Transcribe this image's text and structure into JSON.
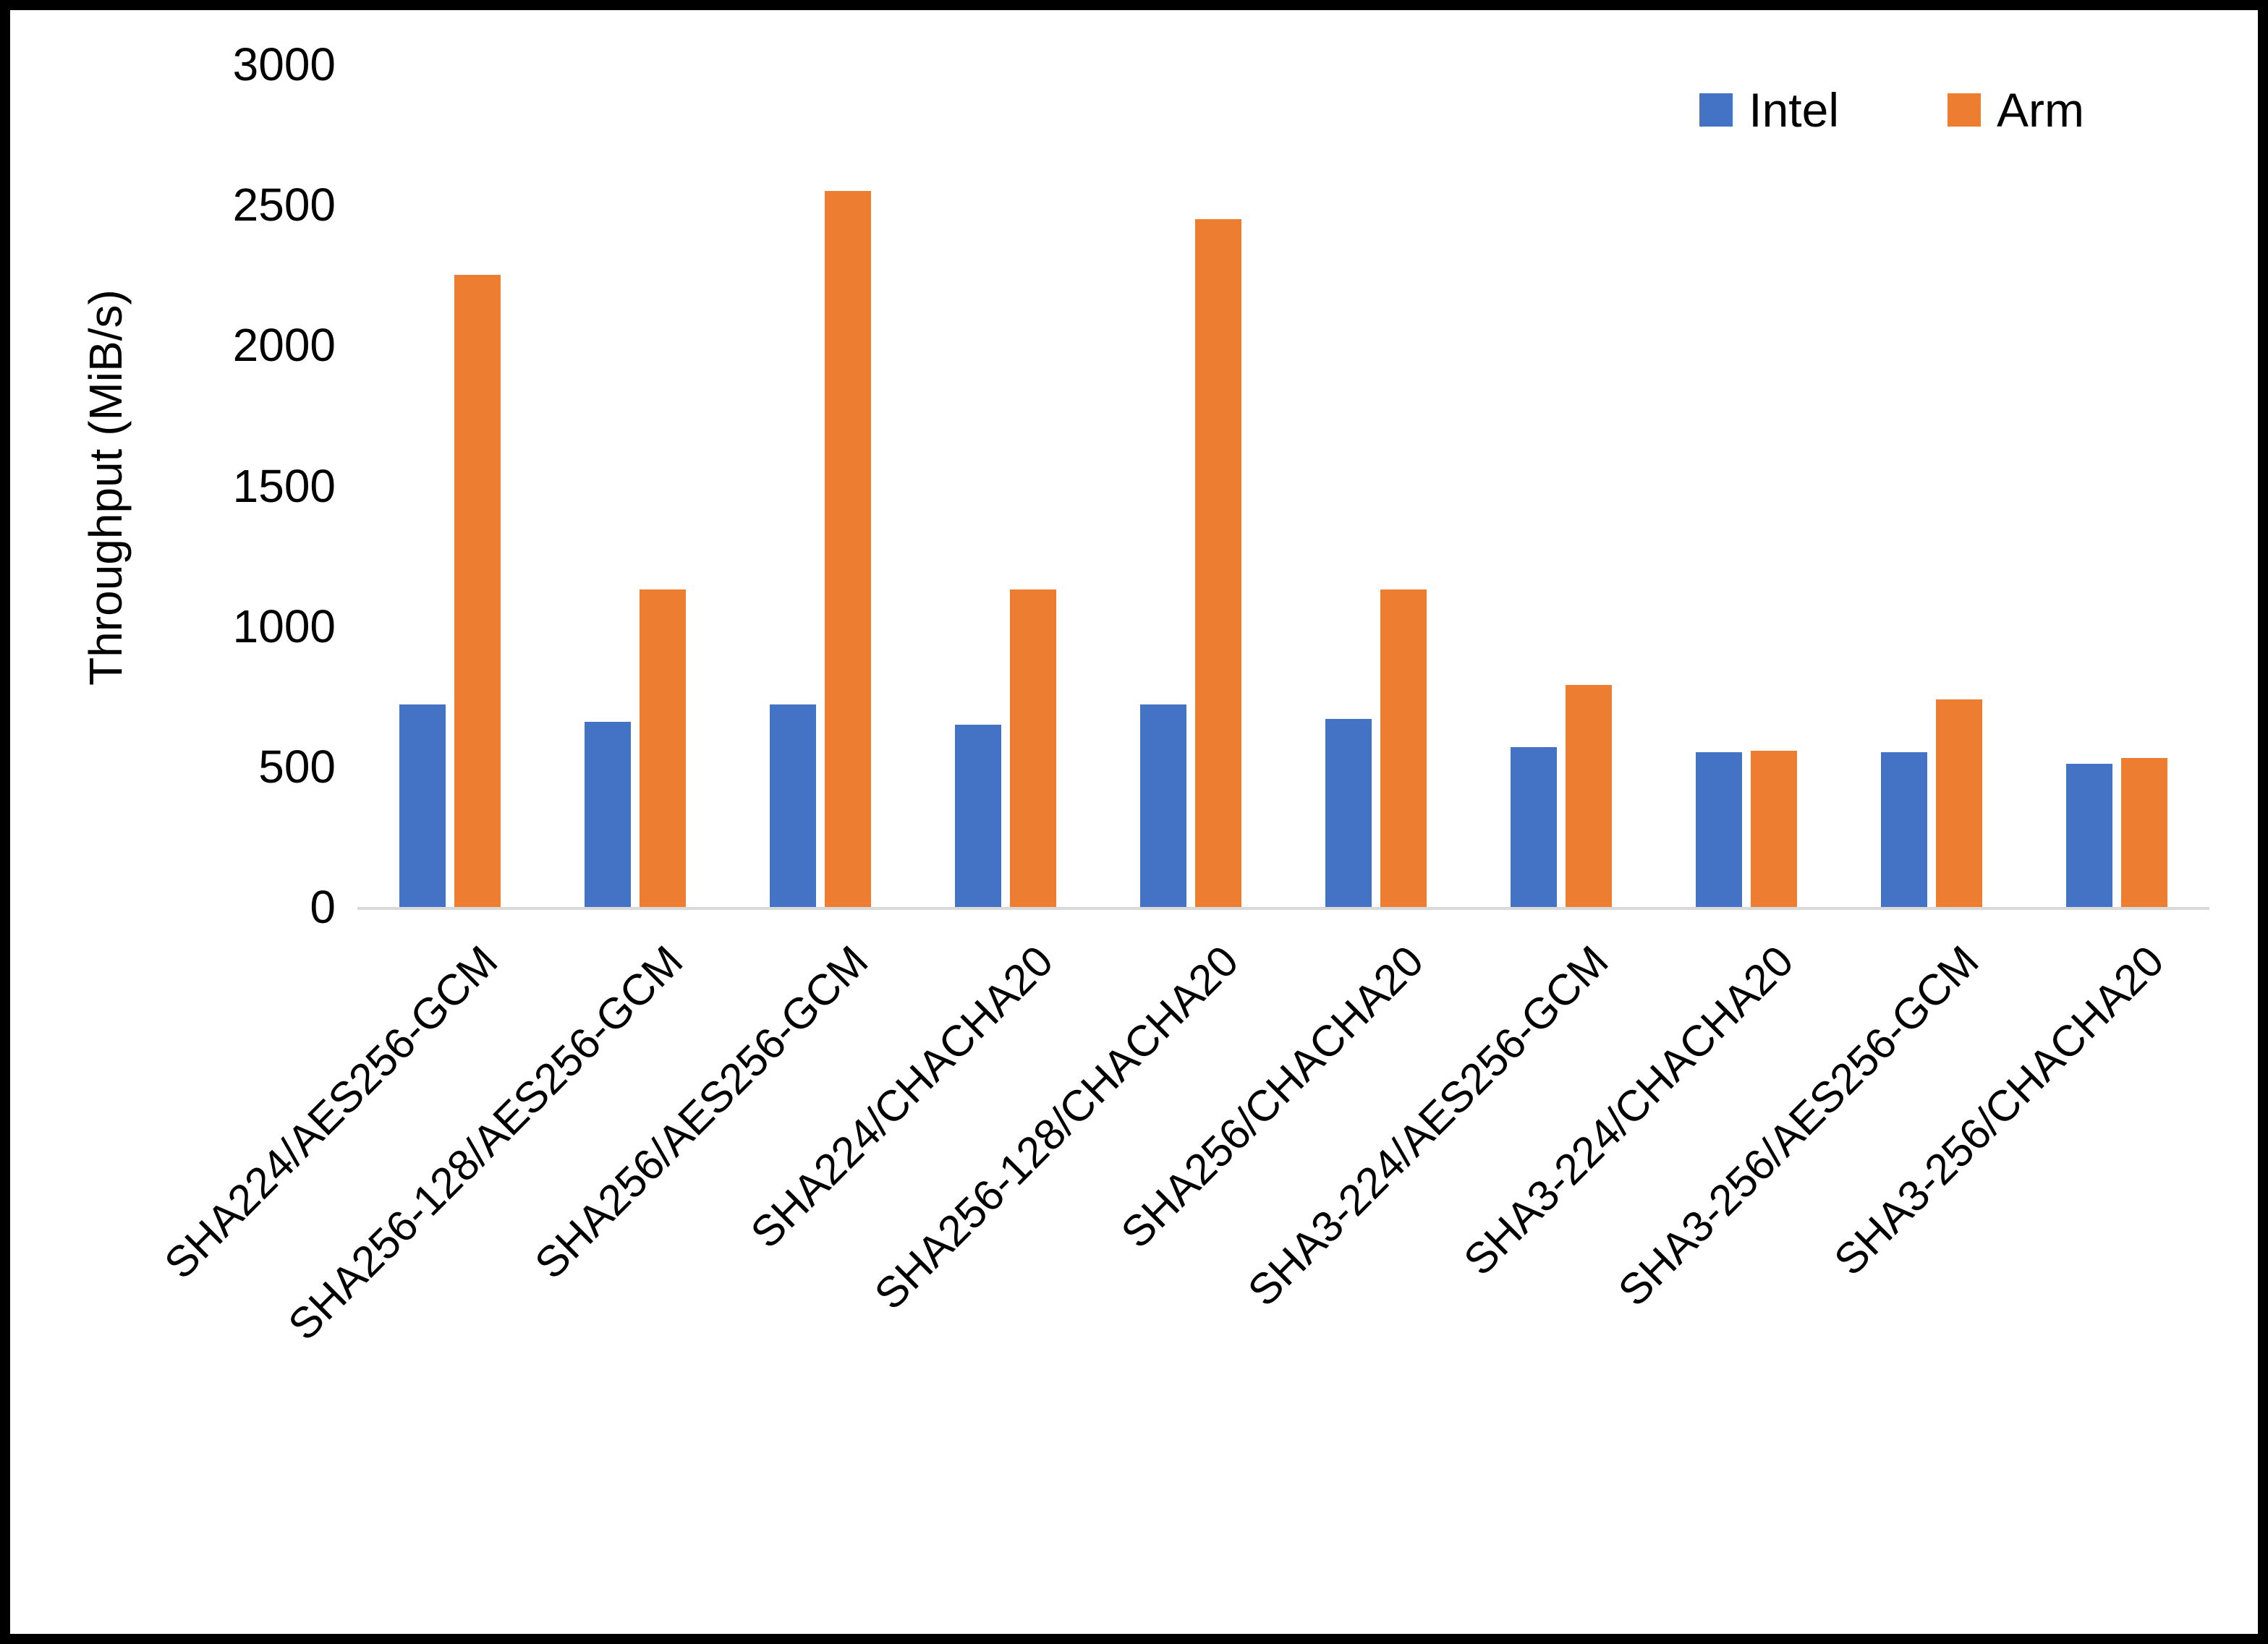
{
  "chart_data": {
    "type": "bar",
    "title": "",
    "xlabel": "",
    "ylabel": "Throughput (MiB/s)",
    "ylim": [
      0,
      3000
    ],
    "yticks": [
      0,
      500,
      1000,
      1500,
      2000,
      2500,
      3000
    ],
    "grid": false,
    "legend_position": "top-right",
    "categories": [
      "SHA224/AES256-GCM",
      "SHA256-128/AES256-GCM",
      "SHA256/AES256-GCM",
      "SHA224/CHACHA20",
      "SHA256-128/CHACHA20",
      "SHA256/CHACHA20",
      "SHA3-224/AES256-GCM",
      "SHA3-224/CHACHA20",
      "SHA3-256/AES256-GCM",
      "SHA3-256/CHACHA20"
    ],
    "series": [
      {
        "name": "Intel",
        "color": "#4472C4",
        "values": [
          720,
          660,
          720,
          650,
          720,
          670,
          570,
          550,
          550,
          510
        ]
      },
      {
        "name": "Arm",
        "color": "#ED7D31",
        "values": [
          2250,
          1130,
          2550,
          1130,
          2450,
          1130,
          790,
          555,
          740,
          530
        ]
      }
    ]
  }
}
